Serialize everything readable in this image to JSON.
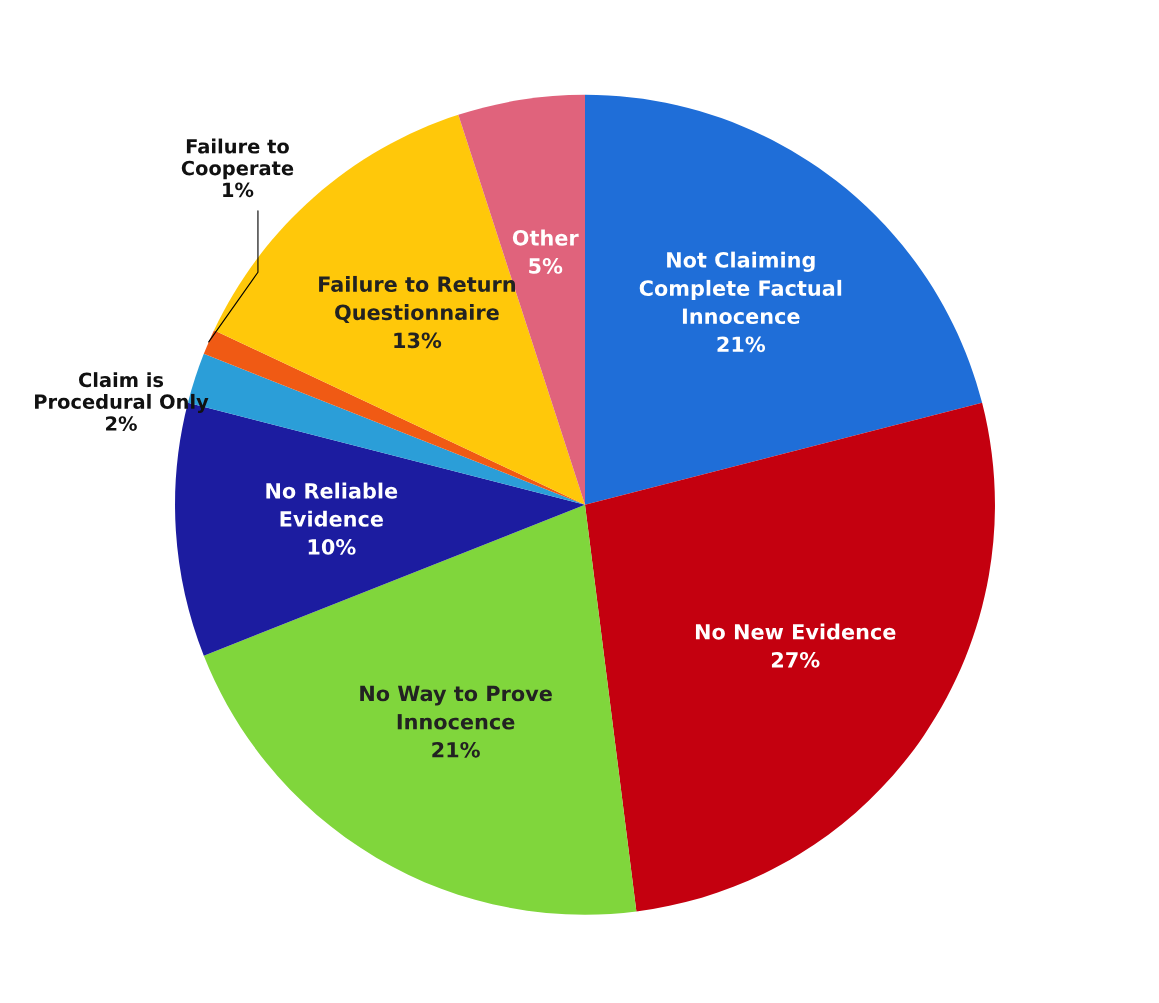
{
  "chart_data": {
    "type": "pie",
    "categories": [
      "Not Claiming\nComplete Factual\nInnocence",
      "No New Evidence",
      "No Way to Prove\nInnocence",
      "No Reliable\nEvidence",
      "Claim is\nProcedural Only",
      "Failure to\nCooperate",
      "Failure to Return\nQuestionnaire",
      "Other"
    ],
    "values": [
      21,
      27,
      21,
      10,
      2,
      1,
      13,
      5
    ],
    "value_labels": [
      "21%",
      "27%",
      "21%",
      "10%",
      "2%",
      "1%",
      "13%",
      "5%"
    ],
    "colors": [
      "#1f6ed8",
      "#c4000f",
      "#80d63c",
      "#1c1ca0",
      "#2b9ed8",
      "#f05a14",
      "#ffc80a",
      "#e0637c"
    ]
  }
}
